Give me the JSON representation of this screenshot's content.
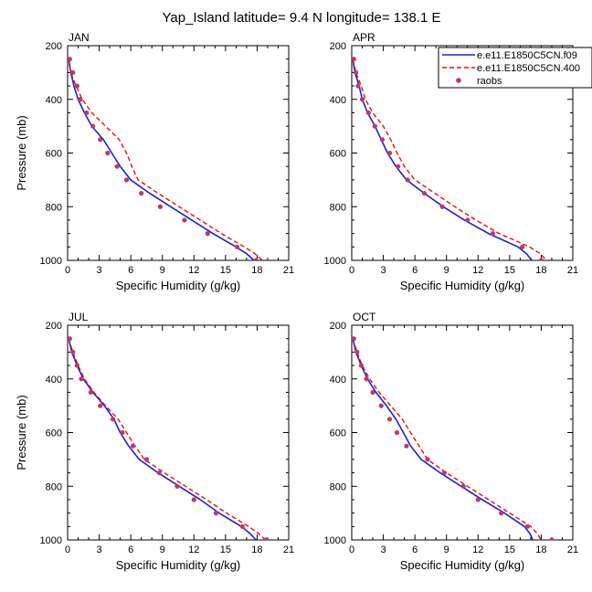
{
  "figure": {
    "title": "Yap_Island  latitude= 9.4 N longitude= 138.1 E"
  },
  "legend": {
    "placement": "top-right of first row",
    "entries": [
      {
        "label": "e.e11.E1850C5CN.f09",
        "color": "#1f1fd6",
        "style": "solid"
      },
      {
        "label": "e.e11.E1850C5CN.400",
        "color": "#e01010",
        "style": "dashed"
      },
      {
        "label": "raobs",
        "color": "#b83a6a",
        "style": "marker"
      }
    ]
  },
  "chart_data": [
    {
      "type": "line",
      "title": "JAN",
      "xlabel": "Specific Humidity (g/kg)",
      "ylabel": "Pressure (mb)",
      "xlim": [
        0,
        21
      ],
      "ylim": [
        200,
        1000
      ],
      "y_inverted": true,
      "xticks": [
        0,
        3,
        6,
        9,
        12,
        15,
        18,
        21
      ],
      "yticks": [
        200,
        400,
        600,
        800,
        1000
      ],
      "series": [
        {
          "name": "e.e11.E1850C5CN.f09",
          "points": [
            [
              0.1,
              250
            ],
            [
              0.3,
              300
            ],
            [
              0.6,
              350
            ],
            [
              1.0,
              400
            ],
            [
              1.6,
              450
            ],
            [
              2.3,
              500
            ],
            [
              3.4,
              550
            ],
            [
              4.2,
              600
            ],
            [
              5.0,
              650
            ],
            [
              6.0,
              700
            ],
            [
              7.8,
              750
            ],
            [
              9.8,
              800
            ],
            [
              11.8,
              850
            ],
            [
              13.8,
              900
            ],
            [
              16.0,
              950
            ],
            [
              17.0,
              975
            ],
            [
              17.7,
              1000
            ]
          ]
        },
        {
          "name": "e.e11.E1850C5CN.400",
          "points": [
            [
              0.1,
              250
            ],
            [
              0.3,
              300
            ],
            [
              0.8,
              350
            ],
            [
              1.4,
              400
            ],
            [
              2.3,
              450
            ],
            [
              3.6,
              500
            ],
            [
              4.9,
              550
            ],
            [
              5.6,
              600
            ],
            [
              6.1,
              650
            ],
            [
              6.7,
              700
            ],
            [
              8.6,
              750
            ],
            [
              10.6,
              800
            ],
            [
              12.6,
              850
            ],
            [
              14.6,
              900
            ],
            [
              16.8,
              950
            ],
            [
              17.8,
              975
            ],
            [
              18.5,
              1000
            ]
          ]
        },
        {
          "name": "raobs",
          "points": [
            [
              0.2,
              250
            ],
            [
              0.5,
              300
            ],
            [
              0.9,
              350
            ],
            [
              1.2,
              400
            ],
            [
              1.8,
              450
            ],
            [
              2.4,
              500
            ],
            [
              3.1,
              550
            ],
            [
              3.8,
              600
            ],
            [
              4.7,
              650
            ],
            [
              5.6,
              700
            ],
            [
              7.0,
              750
            ],
            [
              8.8,
              800
            ],
            [
              11.1,
              850
            ],
            [
              13.3,
              900
            ],
            [
              16.1,
              950
            ],
            [
              17.9,
              1000
            ]
          ]
        }
      ]
    },
    {
      "type": "line",
      "title": "APR",
      "xlabel": "Specific Humidity (g/kg)",
      "ylabel": "",
      "xlim": [
        0,
        21
      ],
      "ylim": [
        200,
        1000
      ],
      "y_inverted": true,
      "xticks": [
        0,
        3,
        6,
        9,
        12,
        15,
        18,
        21
      ],
      "yticks": [
        200,
        400,
        600,
        800,
        1000
      ],
      "series": [
        {
          "name": "e.e11.E1850C5CN.f09",
          "points": [
            [
              0.1,
              250
            ],
            [
              0.3,
              300
            ],
            [
              0.7,
              350
            ],
            [
              1.0,
              400
            ],
            [
              1.5,
              450
            ],
            [
              2.2,
              500
            ],
            [
              2.8,
              550
            ],
            [
              3.4,
              600
            ],
            [
              4.2,
              650
            ],
            [
              5.2,
              700
            ],
            [
              6.9,
              750
            ],
            [
              8.7,
              800
            ],
            [
              10.7,
              850
            ],
            [
              13.0,
              900
            ],
            [
              15.8,
              950
            ],
            [
              16.6,
              975
            ],
            [
              17.1,
              1000
            ]
          ]
        },
        {
          "name": "e.e11.E1850C5CN.400",
          "points": [
            [
              0.1,
              250
            ],
            [
              0.4,
              300
            ],
            [
              0.9,
              350
            ],
            [
              1.3,
              400
            ],
            [
              2.0,
              450
            ],
            [
              3.0,
              500
            ],
            [
              3.7,
              550
            ],
            [
              4.3,
              600
            ],
            [
              5.0,
              650
            ],
            [
              6.0,
              700
            ],
            [
              7.9,
              750
            ],
            [
              9.8,
              800
            ],
            [
              11.8,
              850
            ],
            [
              14.0,
              900
            ],
            [
              16.9,
              950
            ],
            [
              17.9,
              975
            ],
            [
              18.5,
              1000
            ]
          ]
        },
        {
          "name": "raobs",
          "points": [
            [
              0.2,
              250
            ],
            [
              0.4,
              300
            ],
            [
              0.6,
              350
            ],
            [
              1.0,
              400
            ],
            [
              1.6,
              450
            ],
            [
              2.2,
              500
            ],
            [
              2.9,
              550
            ],
            [
              3.6,
              600
            ],
            [
              4.4,
              650
            ],
            [
              5.3,
              700
            ],
            [
              6.9,
              750
            ],
            [
              8.6,
              800
            ],
            [
              11.0,
              850
            ],
            [
              13.4,
              900
            ],
            [
              16.2,
              950
            ],
            [
              18.0,
              1000
            ]
          ]
        }
      ]
    },
    {
      "type": "line",
      "title": "JUL",
      "xlabel": "Specific Humidity (g/kg)",
      "ylabel": "Pressure (mb)",
      "xlim": [
        0,
        21
      ],
      "ylim": [
        200,
        1000
      ],
      "y_inverted": true,
      "xticks": [
        0,
        3,
        6,
        9,
        12,
        15,
        18,
        21
      ],
      "yticks": [
        200,
        400,
        600,
        800,
        1000
      ],
      "series": [
        {
          "name": "e.e11.E1850C5CN.f09",
          "points": [
            [
              0.1,
              250
            ],
            [
              0.4,
              300
            ],
            [
              0.9,
              350
            ],
            [
              1.5,
              400
            ],
            [
              2.4,
              450
            ],
            [
              3.5,
              500
            ],
            [
              4.4,
              550
            ],
            [
              5.0,
              600
            ],
            [
              5.8,
              650
            ],
            [
              6.8,
              700
            ],
            [
              8.6,
              750
            ],
            [
              10.6,
              800
            ],
            [
              12.6,
              850
            ],
            [
              14.4,
              900
            ],
            [
              16.5,
              950
            ],
            [
              17.3,
              975
            ],
            [
              17.9,
              1000
            ]
          ]
        },
        {
          "name": "e.e11.E1850C5CN.400",
          "points": [
            [
              0.1,
              250
            ],
            [
              0.5,
              300
            ],
            [
              1.0,
              350
            ],
            [
              1.6,
              400
            ],
            [
              2.5,
              450
            ],
            [
              3.6,
              500
            ],
            [
              4.8,
              550
            ],
            [
              5.6,
              600
            ],
            [
              6.4,
              650
            ],
            [
              7.3,
              700
            ],
            [
              9.2,
              750
            ],
            [
              11.2,
              800
            ],
            [
              13.2,
              850
            ],
            [
              15.1,
              900
            ],
            [
              17.2,
              950
            ],
            [
              18.1,
              975
            ],
            [
              18.8,
              1000
            ]
          ]
        },
        {
          "name": "raobs",
          "points": [
            [
              0.2,
              250
            ],
            [
              0.5,
              300
            ],
            [
              0.9,
              350
            ],
            [
              1.3,
              400
            ],
            [
              2.2,
              450
            ],
            [
              3.1,
              500
            ],
            [
              4.3,
              550
            ],
            [
              5.2,
              600
            ],
            [
              6.2,
              650
            ],
            [
              7.5,
              700
            ],
            [
              8.7,
              750
            ],
            [
              10.4,
              800
            ],
            [
              12.0,
              850
            ],
            [
              14.1,
              900
            ],
            [
              16.6,
              950
            ],
            [
              18.8,
              1000
            ]
          ]
        }
      ]
    },
    {
      "type": "line",
      "title": "OCT",
      "xlabel": "Specific Humidity (g/kg)",
      "ylabel": "",
      "xlim": [
        0,
        21
      ],
      "ylim": [
        200,
        1000
      ],
      "y_inverted": true,
      "xticks": [
        0,
        3,
        6,
        9,
        12,
        15,
        18,
        21
      ],
      "yticks": [
        200,
        400,
        600,
        800,
        1000
      ],
      "series": [
        {
          "name": "e.e11.E1850C5CN.f09",
          "points": [
            [
              0.1,
              250
            ],
            [
              0.4,
              300
            ],
            [
              0.9,
              350
            ],
            [
              1.5,
              400
            ],
            [
              2.3,
              450
            ],
            [
              3.3,
              500
            ],
            [
              4.2,
              550
            ],
            [
              4.9,
              600
            ],
            [
              5.6,
              650
            ],
            [
              6.6,
              700
            ],
            [
              8.4,
              750
            ],
            [
              10.4,
              800
            ],
            [
              12.4,
              850
            ],
            [
              14.5,
              900
            ],
            [
              16.4,
              950
            ],
            [
              16.9,
              975
            ],
            [
              17.2,
              1000
            ]
          ]
        },
        {
          "name": "e.e11.E1850C5CN.400",
          "points": [
            [
              0.1,
              250
            ],
            [
              0.5,
              300
            ],
            [
              1.0,
              350
            ],
            [
              1.7,
              400
            ],
            [
              2.6,
              450
            ],
            [
              3.7,
              500
            ],
            [
              4.8,
              550
            ],
            [
              5.6,
              600
            ],
            [
              6.4,
              650
            ],
            [
              7.2,
              700
            ],
            [
              9.0,
              750
            ],
            [
              11.0,
              800
            ],
            [
              13.0,
              850
            ],
            [
              15.0,
              900
            ],
            [
              17.0,
              950
            ],
            [
              17.6,
              975
            ],
            [
              18.0,
              1000
            ]
          ]
        },
        {
          "name": "raobs",
          "points": [
            [
              0.2,
              250
            ],
            [
              0.5,
              300
            ],
            [
              0.9,
              350
            ],
            [
              1.4,
              400
            ],
            [
              2.0,
              450
            ],
            [
              2.8,
              500
            ],
            [
              3.6,
              550
            ],
            [
              4.3,
              600
            ],
            [
              5.2,
              650
            ],
            [
              7.2,
              700
            ],
            [
              8.8,
              750
            ],
            [
              10.6,
              800
            ],
            [
              12.0,
              850
            ],
            [
              14.2,
              900
            ],
            [
              16.7,
              950
            ],
            [
              19.0,
              1000
            ]
          ]
        }
      ]
    }
  ]
}
